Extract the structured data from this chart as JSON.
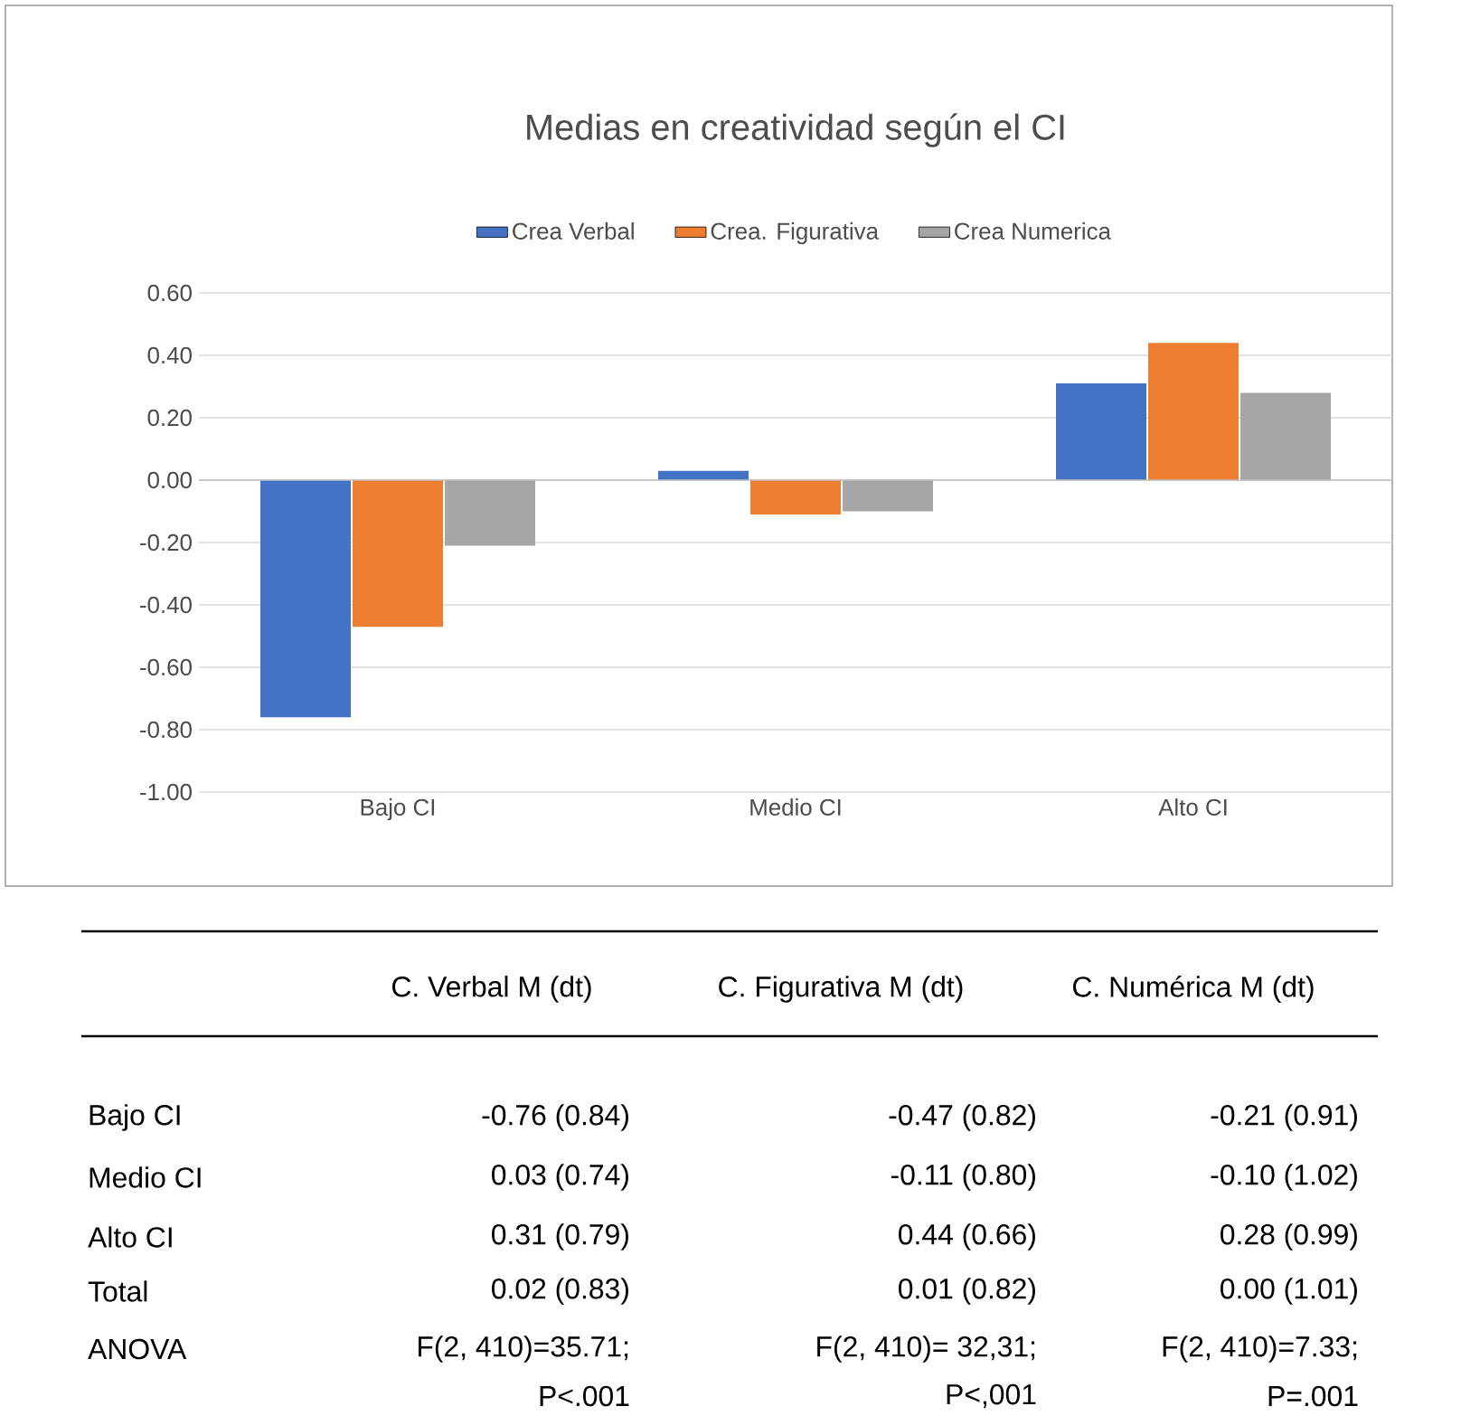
{
  "chart_data": {
    "type": "bar",
    "title": "Medias en creatividad según el CI",
    "categories": [
      "Bajo CI",
      "Medio CI",
      "Alto CI"
    ],
    "series": [
      {
        "name": "Crea Verbal",
        "color": "#4472c4",
        "values": [
          -0.76,
          0.03,
          0.31
        ]
      },
      {
        "name": "Crea. Figurativa",
        "color": "#ed7d31",
        "values": [
          -0.47,
          -0.11,
          0.44
        ]
      },
      {
        "name": "Crea Numerica",
        "color": "#a5a5a5",
        "values": [
          -0.21,
          -0.1,
          0.28
        ]
      }
    ],
    "ylim": [
      -1.0,
      0.6
    ],
    "yticks": [
      {
        "value": -1.0,
        "label": "-1.00"
      },
      {
        "value": -0.8,
        "label": "-0.80"
      },
      {
        "value": -0.6,
        "label": "-0.60"
      },
      {
        "value": -0.4,
        "label": "-0.40"
      },
      {
        "value": -0.2,
        "label": "-0.20"
      },
      {
        "value": 0,
        "label": "0.00"
      },
      {
        "value": 0.2,
        "label": "0.20"
      },
      {
        "value": 0.4,
        "label": "0.40"
      },
      {
        "value": 0.6,
        "label": "0.60"
      }
    ],
    "grid": "y",
    "legend": "top",
    "annotations": [
      "C. Verbal M (dt)",
      "C.  Figurativa M (dt)",
      "C. Numérica M (dt)",
      "Bajo CI",
      "-0.76 (0.84)",
      "-0.47 (0.82)",
      "-0.21 (0.91)",
      "Medio CI",
      "0.03 (0.74)",
      "-0.11 (0.80)",
      "-0.10 (1.02)",
      "Alto CI",
      "0.31 (0.79)",
      "0.44 (0.66)",
      "0.28 (0.99)",
      "Total",
      "0.02 (0.83)",
      "0.01 (0.82)",
      "0.00 (1.01)",
      "ANOVA",
      "F(2, 410)=35.71;",
      "F(2, 410)= 32,31;",
      "F(2, 410)=7.33;",
      "P<.001",
      "P<,001",
      "P=.001"
    ]
  }
}
